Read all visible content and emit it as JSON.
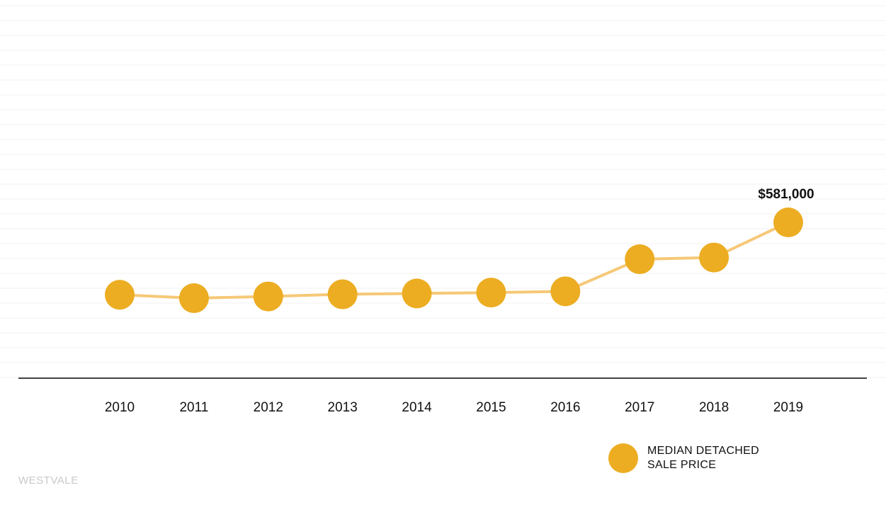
{
  "chart_data": {
    "type": "line",
    "categories": [
      "2010",
      "2011",
      "2012",
      "2013",
      "2014",
      "2015",
      "2016",
      "2017",
      "2018",
      "2019"
    ],
    "series": [
      {
        "name": "MEDIAN DETACHED SALE PRICE",
        "values": [
          412000,
          404000,
          408000,
          413000,
          415000,
          417000,
          420000,
          495000,
          499000,
          581000
        ]
      }
    ],
    "annotations": [
      {
        "category": "2019",
        "text": "$581,000"
      }
    ],
    "legend": {
      "line1": "MEDIAN DETACHED",
      "line2": "SALE PRICE",
      "position": "bottom-right"
    },
    "grid": true,
    "colors": {
      "marker": "#ecad22",
      "line": "#f6c877",
      "axis": "#444444",
      "grid": "#f1f1f1"
    }
  },
  "brand": "WESTVALE"
}
